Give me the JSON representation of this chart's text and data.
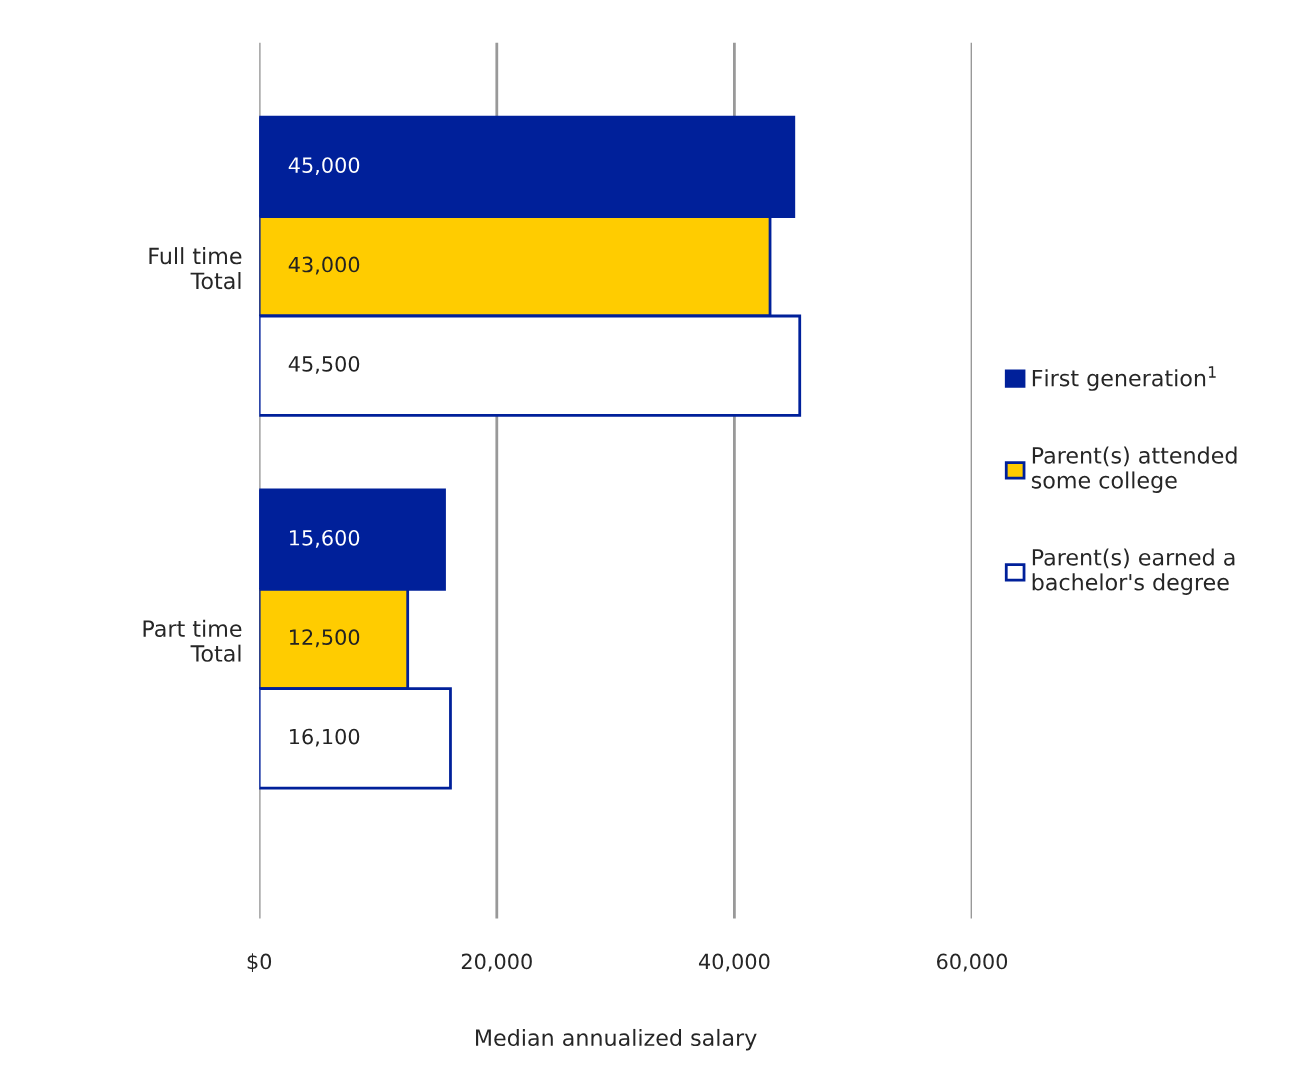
{
  "chart_data": {
    "type": "bar",
    "orientation": "horizontal",
    "xlabel": "Median annualized salary",
    "categories": [
      "Full time\nTotal",
      "Part time\nTotal"
    ],
    "series": [
      {
        "name": "First generation$^{1}$",
        "color": "#00209a",
        "values": [
          45000,
          15600
        ],
        "value_labels": [
          "45,000",
          "15,600"
        ]
      },
      {
        "name": "Parent(s) attended\nsome college",
        "color": "#ffcc00",
        "values": [
          43000,
          12500
        ],
        "value_labels": [
          "43,000",
          "12,500"
        ]
      },
      {
        "name": "Parent(s) earned a\nbachelor's degree",
        "color": "#ffffff",
        "values": [
          45500,
          16100
        ],
        "value_labels": [
          "45,500",
          "16,100"
        ]
      }
    ],
    "xlim": [
      0,
      60000
    ],
    "xticks": [
      {
        "value": 0,
        "label": "$0"
      },
      {
        "value": 20000,
        "label": "20,000"
      },
      {
        "value": 40000,
        "label": "40,000"
      },
      {
        "value": 60000,
        "label": "60,000"
      }
    ],
    "grid": "x",
    "legend": "right"
  }
}
